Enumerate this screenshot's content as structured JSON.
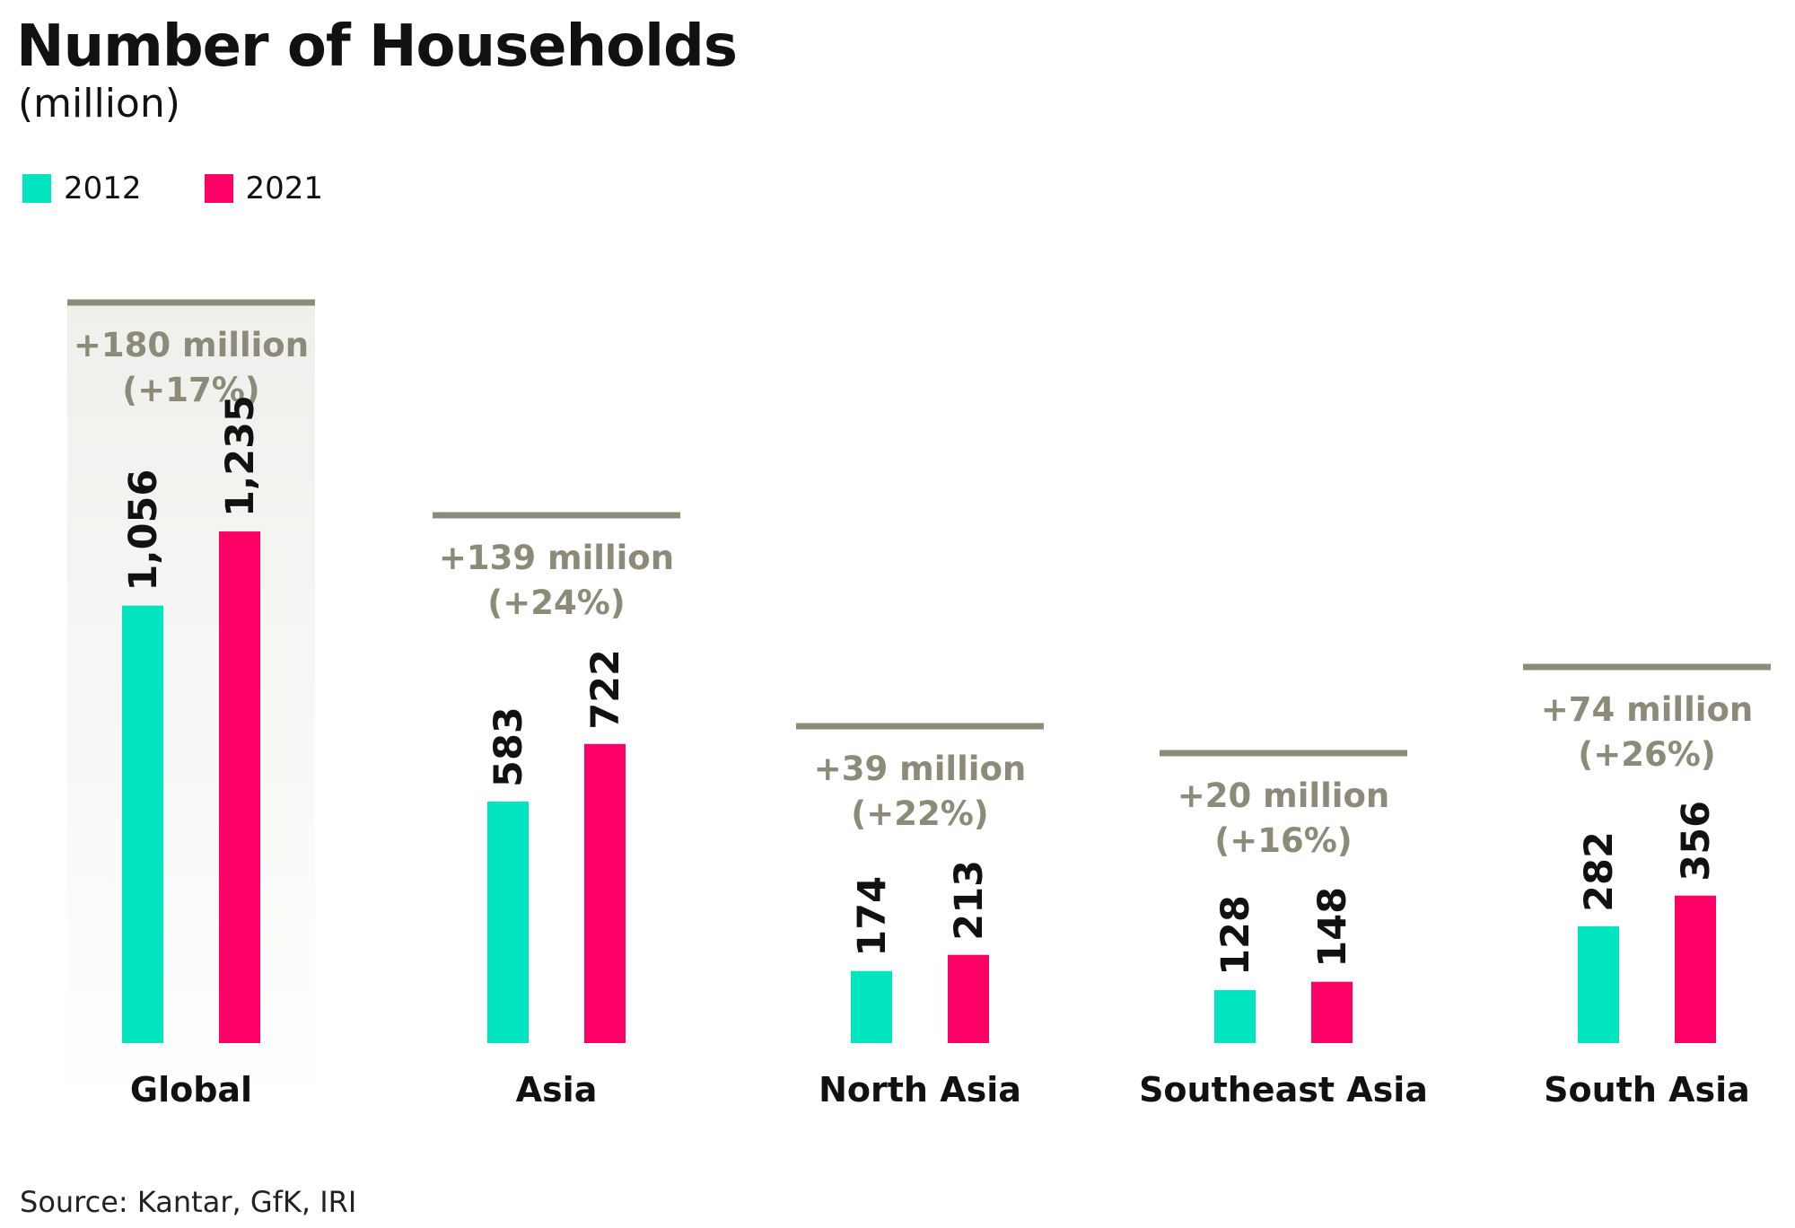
{
  "title": "Number of Households",
  "subtitle": "(million)",
  "source": "Source: Kantar, GfK, IRI",
  "colors": {
    "2012": "#00e5bf",
    "2021": "#ff0066",
    "change": "#8c8a78",
    "highlight": "#f0f0ee"
  },
  "chart_data": {
    "type": "bar",
    "title": "Number of Households",
    "subtitle": "(million)",
    "categories": [
      "Global",
      "Asia",
      "North Asia",
      "Southeast Asia",
      "South Asia"
    ],
    "series": [
      {
        "name": "2012",
        "values": [
          1056,
          583,
          174,
          128,
          282
        ],
        "labels": [
          "1,056",
          "583",
          "174",
          "128",
          "282"
        ]
      },
      {
        "name": "2021",
        "values": [
          1235,
          722,
          213,
          148,
          356
        ],
        "labels": [
          "1,235",
          "722",
          "213",
          "148",
          "356"
        ]
      }
    ],
    "changes": [
      [
        "+180 million",
        "(+17%)"
      ],
      [
        "+139 million",
        "(+24%)"
      ],
      [
        "+39 million",
        "(+22%)"
      ],
      [
        "+20 million",
        "(+16%)"
      ],
      [
        "+74 million",
        "(+26%)"
      ]
    ],
    "highlighted_category": "Global",
    "legend_position": "top-left",
    "grid": false
  }
}
